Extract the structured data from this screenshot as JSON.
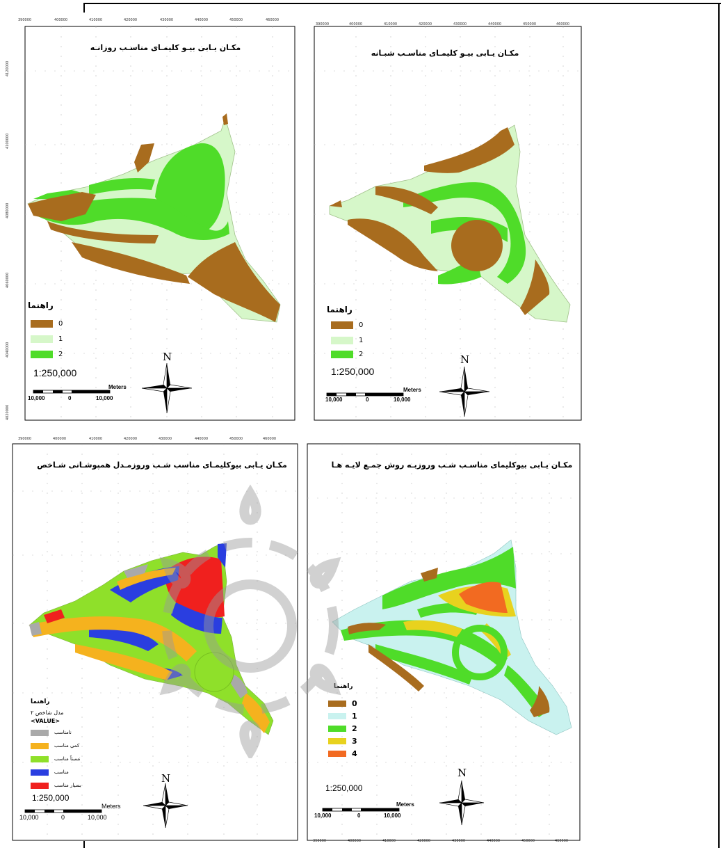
{
  "panels": [
    {
      "title": "مکـان یـابی بیـو کلیمـای مناسـب روزانـه",
      "legend_title": "راهنما",
      "legend": [
        {
          "label": "0",
          "color": "#a86c1e"
        },
        {
          "label": "1",
          "color": "#d6f7c9"
        },
        {
          "label": "2",
          "color": "#4fdc29"
        }
      ],
      "scale": "1:250,000",
      "scalebar_labels": [
        "10,000",
        "0",
        "10,000"
      ],
      "scalebar_unit": "Meters",
      "north": "N"
    },
    {
      "title": "مکـان یـابی بیـو کلیمـای مناسـب شبـانه",
      "legend_title": "راهنما",
      "legend": [
        {
          "label": "0",
          "color": "#a86c1e"
        },
        {
          "label": "1",
          "color": "#d6f7c9"
        },
        {
          "label": "2",
          "color": "#4fdc29"
        }
      ],
      "scale": "1:250,000",
      "scalebar_labels": [
        "10,000",
        "0",
        "10,000"
      ],
      "scalebar_unit": "Meters",
      "north": "N"
    },
    {
      "title": "مکـان یـابی بیوکلیمـای مناسب شـب وروزمـدل همپوشـانی شـاخص",
      "legend_title": "راهنما",
      "legend_sub1": "مدل شاخص ۲",
      "legend_sub2": "<VALUE>",
      "legend": [
        {
          "label": "نامناسب",
          "color": "#a9a9a9"
        },
        {
          "label": "کمی مناسب",
          "color": "#f5b21e"
        },
        {
          "label": "نسبتاً مناسب",
          "color": "#8fe02a"
        },
        {
          "label": "مناسب",
          "color": "#2a3ee0"
        },
        {
          "label": "بسیار مناسب",
          "color": "#f0201e"
        }
      ],
      "scale": "1:250,000",
      "scalebar_labels": [
        "10,000",
        "0",
        "10,000"
      ],
      "scalebar_unit": "Meters",
      "north": "N"
    },
    {
      "title": "مکـان یـابی بیوکلیمای مناسـب شـب وروزبـه روش جمـع لایـه هـا",
      "legend_title": "راهنما",
      "legend": [
        {
          "label": "0",
          "color": "#a86c1e"
        },
        {
          "label": "1",
          "color": "#c9f2ef"
        },
        {
          "label": "2",
          "color": "#4fdc29"
        },
        {
          "label": "3",
          "color": "#e8d21e"
        },
        {
          "label": "4",
          "color": "#f26a21"
        }
      ],
      "scale": "1:250,000",
      "scalebar_labels": [
        "10,000",
        "0",
        "10,000"
      ],
      "scalebar_unit": "Meters",
      "north": "N"
    }
  ],
  "grid_labels": {
    "top_left": [
      "390000",
      "400000",
      "410000",
      "420000",
      "430000",
      "440000",
      "450000",
      "460000"
    ],
    "top_right": [
      "390000",
      "400000",
      "410000",
      "420000",
      "430000",
      "440000",
      "450000",
      "460000"
    ],
    "bottom_left": [
      "390000",
      "400000",
      "410000",
      "420000",
      "430000",
      "440000",
      "450000",
      "460000"
    ],
    "bottom_right": [
      "390000",
      "400000",
      "410000",
      "420000",
      "430000",
      "440000",
      "450000",
      "460000"
    ],
    "left_axis": [
      "4120000",
      "4100000",
      "4080000",
      "4060000",
      "4040000",
      "4020000"
    ]
  }
}
